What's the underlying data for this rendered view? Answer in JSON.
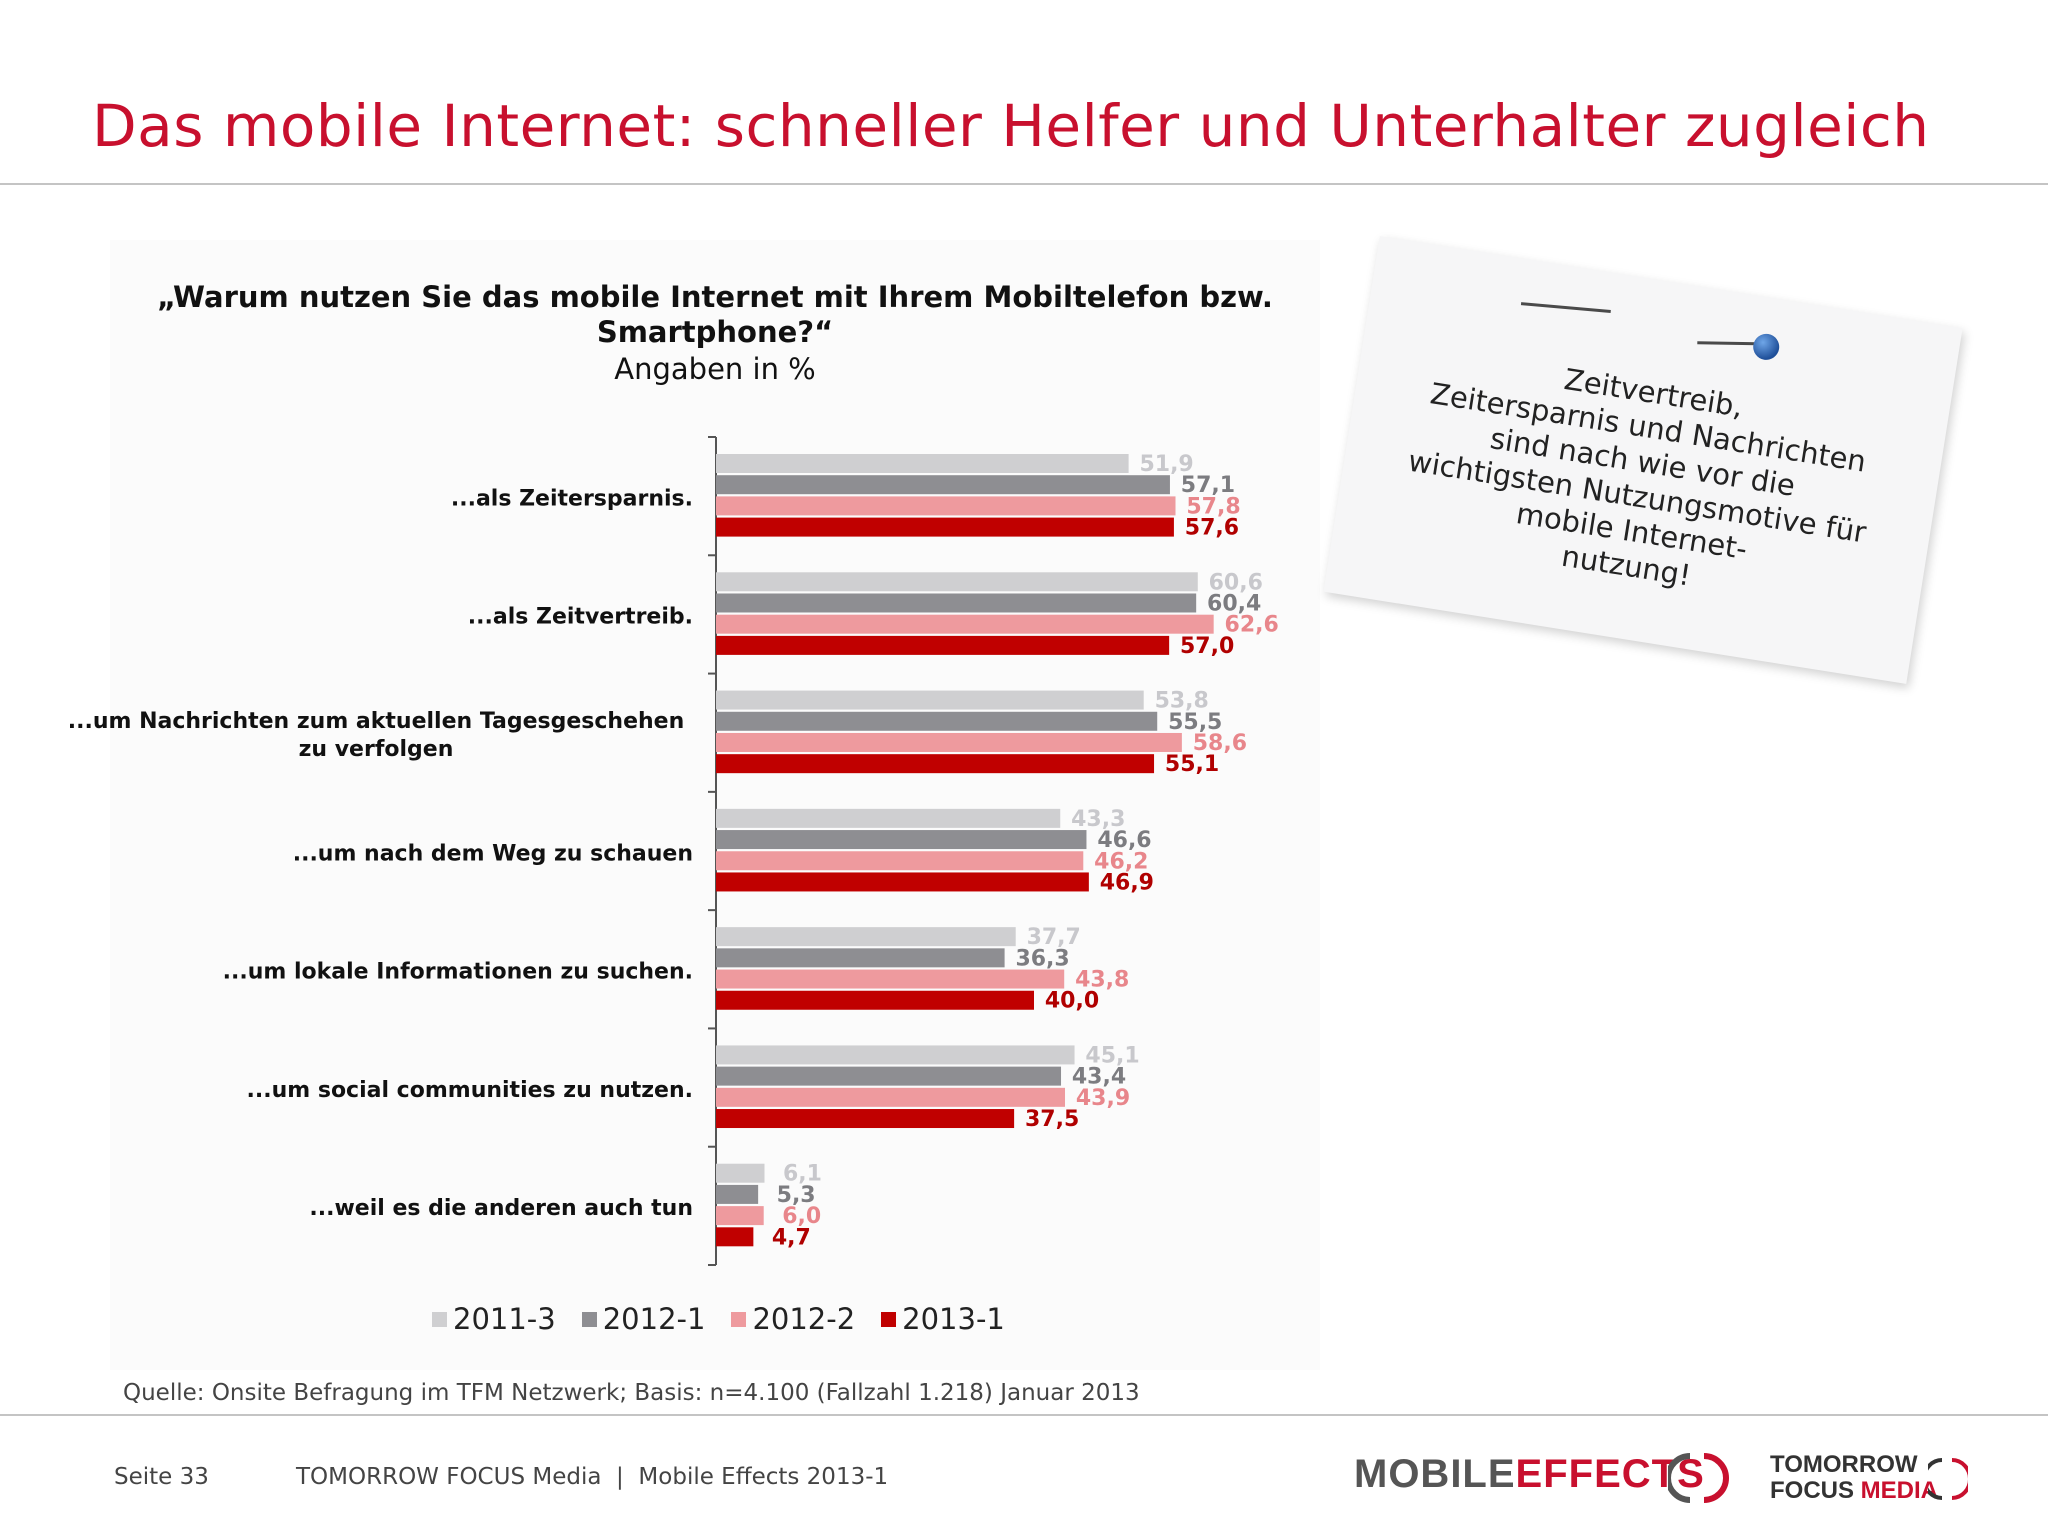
{
  "page": {
    "title": "Das mobile Internet: schneller Helfer und Unterhalter zugleich",
    "source": "Quelle: Onsite Befragung im TFM Netzwerk; Basis: n=4.100 (Fallzahl 1.218) Januar 2013",
    "note": [
      "Zeitvertreib,",
      "Zeitersparnis und Nachrichten",
      "sind nach wie vor die",
      "wichtigsten Nutzungsmotive für",
      "mobile Internet-",
      "nutzung!"
    ],
    "footer": {
      "page_label": "Seite 33",
      "brand": "TOMORROW FOCUS Media  |  Mobile Effects 2013-1"
    },
    "logo": {
      "mobile": "MOBILE",
      "effects": "EFFECTS",
      "tomorrow": "TOMORROW",
      "focus": "FOCUS",
      "media": "MEDIA"
    }
  },
  "chart_data": {
    "type": "bar",
    "orientation": "horizontal",
    "title": "„Warum nutzen Sie das mobile Internet mit Ihrem Mobiltelefon bzw. Smartphone?“",
    "title_lines": [
      "„Warum nutzen Sie das mobile Internet mit Ihrem Mobiltelefon bzw.",
      "Smartphone?“"
    ],
    "subtitle": "Angaben in %",
    "categories": [
      "...als Zeitersparnis.",
      "...als Zeitvertreib.",
      "...um Nachrichten zum aktuellen Tagesgeschehen zu verfolgen",
      "...um nach dem Weg zu schauen",
      "...um lokale Informationen zu suchen.",
      "...um social communities zu nutzen.",
      "...weil es die anderen auch tun"
    ],
    "category_lines": [
      [
        "...als Zeitersparnis."
      ],
      [
        "...als Zeitvertreib."
      ],
      [
        "...um Nachrichten zum aktuellen Tagesgeschehen",
        "zu verfolgen"
      ],
      [
        "...um nach dem Weg zu schauen"
      ],
      [
        "...um lokale Informationen zu suchen."
      ],
      [
        "...um social communities zu nutzen."
      ],
      [
        "...weil es die anderen auch tun"
      ]
    ],
    "series": [
      {
        "name": "2011-3",
        "color": "#cfcfd1",
        "label_color": "#c8c8cc",
        "values": [
          51.9,
          60.6,
          53.8,
          43.3,
          37.7,
          45.1,
          6.1
        ],
        "labels": [
          "51,9",
          "60,6",
          "53,8",
          "43,3",
          "37,7",
          "45,1",
          "6,1"
        ]
      },
      {
        "name": "2012-1",
        "color": "#8e8e92",
        "label_color": "#7c7c80",
        "values": [
          57.1,
          60.4,
          55.5,
          46.6,
          36.3,
          43.4,
          5.3
        ],
        "labels": [
          "57,1",
          "60,4",
          "55,5",
          "46,6",
          "36,3",
          "43,4",
          "5,3"
        ]
      },
      {
        "name": "2012-2",
        "color": "#ee9a9e",
        "label_color": "#e8868b",
        "values": [
          57.8,
          62.6,
          58.6,
          46.2,
          43.8,
          43.9,
          6.0
        ],
        "labels": [
          "57,8",
          "62,6",
          "58,6",
          "46,2",
          "43,8",
          "43,9",
          "6,0"
        ]
      },
      {
        "name": "2013-1",
        "color": "#c00000",
        "label_color": "#b00000",
        "values": [
          57.6,
          57.0,
          55.1,
          46.9,
          40.0,
          37.5,
          4.7
        ],
        "labels": [
          "57,6",
          "57,0",
          "55,1",
          "46,9",
          "40,0",
          "37,5",
          "4,7"
        ]
      }
    ],
    "xlim": [
      0,
      100
    ],
    "legend_position": "bottom",
    "grid": false
  }
}
